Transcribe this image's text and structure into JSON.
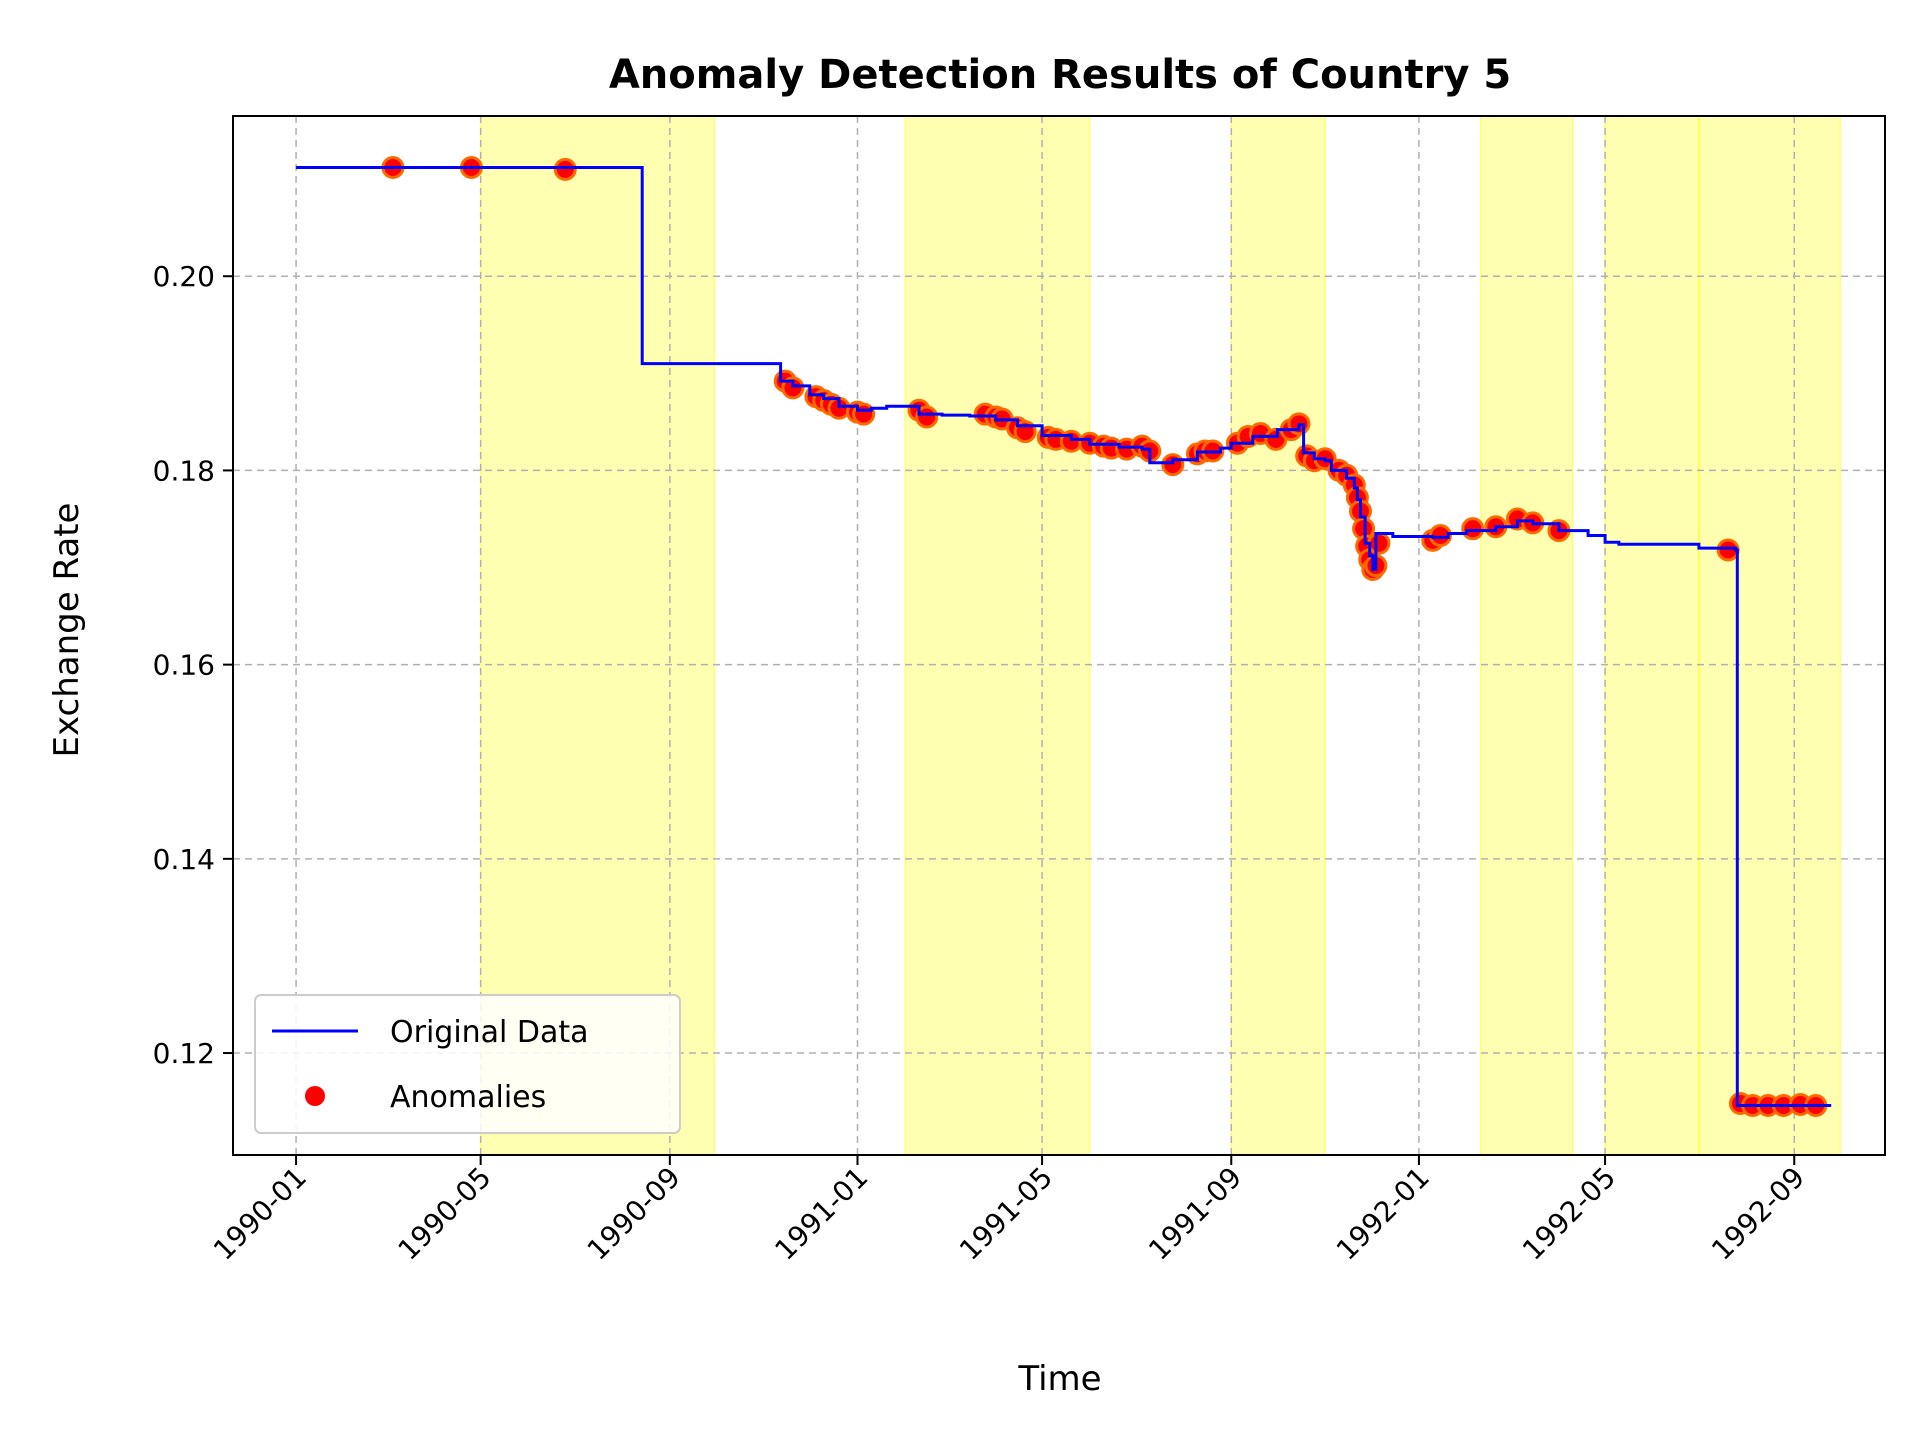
{
  "chart_data": {
    "type": "line",
    "title": "Anomaly Detection Results of Country 5",
    "xlabel": "Time",
    "ylabel": "Exchange Rate",
    "x_ticks": [
      "1990-01",
      "1990-05",
      "1990-09",
      "1991-01",
      "1991-05",
      "1991-09",
      "1992-01",
      "1992-05",
      "1992-09"
    ],
    "y_ticks": [
      "0.12",
      "0.14",
      "0.16",
      "0.18",
      "0.20"
    ],
    "xlim": [
      "1989-11-21",
      "1992-10-30"
    ],
    "ylim": [
      0.1095,
      0.2165
    ],
    "grid": true,
    "legend": {
      "position": "lower-left",
      "entries": [
        "Original Data",
        "Anomalies"
      ]
    },
    "colors": {
      "line": "#0000ff",
      "anomaly": "#ff0000",
      "anomaly_edge": "#ff6a00",
      "band": "#ffff00"
    },
    "shaded_regions": [
      [
        "1990-05-01",
        "1990-09-30"
      ],
      [
        "1991-02-01",
        "1991-06-01"
      ],
      [
        "1991-09-01",
        "1991-11-01"
      ],
      [
        "1992-02-10",
        "1992-04-10"
      ],
      [
        "1992-05-01",
        "1992-07-01"
      ],
      [
        "1992-07-01",
        "1992-10-01"
      ]
    ],
    "series": [
      {
        "name": "Original Data",
        "kind": "step-line",
        "points": [
          [
            "1990-01-01",
            0.2112
          ],
          [
            "1990-08-13",
            0.2112
          ],
          [
            "1990-08-14",
            0.191
          ],
          [
            "1990-11-11",
            0.191
          ],
          [
            "1990-11-12",
            0.1892
          ],
          [
            "1990-11-20",
            0.1887
          ],
          [
            "1990-12-01",
            0.1878
          ],
          [
            "1990-12-10",
            0.1874
          ],
          [
            "1990-12-20",
            0.1866
          ],
          [
            "1991-01-01",
            0.1862
          ],
          [
            "1991-01-10",
            0.1864
          ],
          [
            "1991-01-20",
            0.1866
          ],
          [
            "1991-02-10",
            0.1858
          ],
          [
            "1991-02-25",
            0.1857
          ],
          [
            "1991-03-15",
            0.1856
          ],
          [
            "1991-04-01",
            0.1852
          ],
          [
            "1991-04-15",
            0.1846
          ],
          [
            "1991-05-01",
            0.1836
          ],
          [
            "1991-05-20",
            0.1832
          ],
          [
            "1991-06-01",
            0.1827
          ],
          [
            "1991-06-20",
            0.1824
          ],
          [
            "1991-07-05",
            0.1822
          ],
          [
            "1991-07-10",
            0.1808
          ],
          [
            "1991-07-25",
            0.1811
          ],
          [
            "1991-08-10",
            0.1819
          ],
          [
            "1991-08-25",
            0.1823
          ],
          [
            "1991-09-01",
            0.1828
          ],
          [
            "1991-09-15",
            0.1835
          ],
          [
            "1991-10-01",
            0.1842
          ],
          [
            "1991-10-15",
            0.1847
          ],
          [
            "1991-10-18",
            0.1818
          ],
          [
            "1991-10-25",
            0.1812
          ],
          [
            "1991-11-01",
            0.181
          ],
          [
            "1991-11-05",
            0.18
          ],
          [
            "1991-11-15",
            0.1792
          ],
          [
            "1991-11-20",
            0.1782
          ],
          [
            "1991-11-22",
            0.177
          ],
          [
            "1991-11-24",
            0.1752
          ],
          [
            "1991-11-27",
            0.1725
          ],
          [
            "1991-11-30",
            0.1712
          ],
          [
            "1991-12-02",
            0.1698
          ],
          [
            "1991-12-04",
            0.1735
          ],
          [
            "1991-12-15",
            0.1732
          ],
          [
            "1992-01-10",
            0.1731
          ],
          [
            "1992-01-20",
            0.1735
          ],
          [
            "1992-02-01",
            0.1738
          ],
          [
            "1992-02-20",
            0.1742
          ],
          [
            "1992-03-05",
            0.1748
          ],
          [
            "1992-03-15",
            0.1745
          ],
          [
            "1992-04-01",
            0.1738
          ],
          [
            "1992-04-20",
            0.1733
          ],
          [
            "1992-05-01",
            0.1726
          ],
          [
            "1992-05-10",
            0.1724
          ],
          [
            "1992-07-01",
            0.172
          ],
          [
            "1992-07-25",
            0.1718
          ],
          [
            "1992-07-26",
            0.1146
          ],
          [
            "1992-09-25",
            0.1146
          ]
        ]
      },
      {
        "name": "Anomalies",
        "kind": "scatter",
        "points": [
          [
            "1990-03-05",
            0.2112
          ],
          [
            "1990-04-25",
            0.2112
          ],
          [
            "1990-06-25",
            0.211
          ],
          [
            "1990-11-15",
            0.1892
          ],
          [
            "1990-11-20",
            0.1885
          ],
          [
            "1990-12-05",
            0.1876
          ],
          [
            "1990-12-10",
            0.1872
          ],
          [
            "1990-12-15",
            0.1868
          ],
          [
            "1990-12-20",
            0.1864
          ],
          [
            "1991-01-01",
            0.186
          ],
          [
            "1991-01-05",
            0.1858
          ],
          [
            "1991-02-10",
            0.1862
          ],
          [
            "1991-02-15",
            0.1855
          ],
          [
            "1991-03-25",
            0.1858
          ],
          [
            "1991-04-01",
            0.1855
          ],
          [
            "1991-04-05",
            0.1853
          ],
          [
            "1991-04-15",
            0.1844
          ],
          [
            "1991-04-20",
            0.184
          ],
          [
            "1991-05-05",
            0.1834
          ],
          [
            "1991-05-10",
            0.1832
          ],
          [
            "1991-05-20",
            0.183
          ],
          [
            "1991-06-01",
            0.1828
          ],
          [
            "1991-06-10",
            0.1825
          ],
          [
            "1991-06-15",
            0.1823
          ],
          [
            "1991-06-25",
            0.1822
          ],
          [
            "1991-07-05",
            0.1825
          ],
          [
            "1991-07-10",
            0.182
          ],
          [
            "1991-07-25",
            0.1806
          ],
          [
            "1991-08-10",
            0.1817
          ],
          [
            "1991-08-15",
            0.182
          ],
          [
            "1991-08-20",
            0.182
          ],
          [
            "1991-09-05",
            0.1828
          ],
          [
            "1991-09-12",
            0.1835
          ],
          [
            "1991-09-20",
            0.1838
          ],
          [
            "1991-09-30",
            0.1832
          ],
          [
            "1991-10-10",
            0.1842
          ],
          [
            "1991-10-15",
            0.1848
          ],
          [
            "1991-10-20",
            0.1815
          ],
          [
            "1991-10-25",
            0.181
          ],
          [
            "1991-11-01",
            0.1812
          ],
          [
            "1991-11-10",
            0.18
          ],
          [
            "1991-11-15",
            0.1795
          ],
          [
            "1991-11-20",
            0.1785
          ],
          [
            "1991-11-22",
            0.1772
          ],
          [
            "1991-11-24",
            0.1758
          ],
          [
            "1991-11-26",
            0.174
          ],
          [
            "1991-11-28",
            0.1722
          ],
          [
            "1991-11-30",
            0.1708
          ],
          [
            "1991-12-02",
            0.1698
          ],
          [
            "1991-12-04",
            0.1702
          ],
          [
            "1991-12-06",
            0.1725
          ],
          [
            "1992-01-10",
            0.1728
          ],
          [
            "1992-01-15",
            0.1733
          ],
          [
            "1992-02-05",
            0.174
          ],
          [
            "1992-02-20",
            0.1742
          ],
          [
            "1992-03-05",
            0.175
          ],
          [
            "1992-03-15",
            0.1746
          ],
          [
            "1992-04-01",
            0.1738
          ],
          [
            "1992-07-20",
            0.1718
          ],
          [
            "1992-07-28",
            0.1148
          ],
          [
            "1992-08-05",
            0.1146
          ],
          [
            "1992-08-15",
            0.1146
          ],
          [
            "1992-08-25",
            0.1146
          ],
          [
            "1992-09-05",
            0.1147
          ],
          [
            "1992-09-15",
            0.1146
          ]
        ]
      }
    ]
  }
}
